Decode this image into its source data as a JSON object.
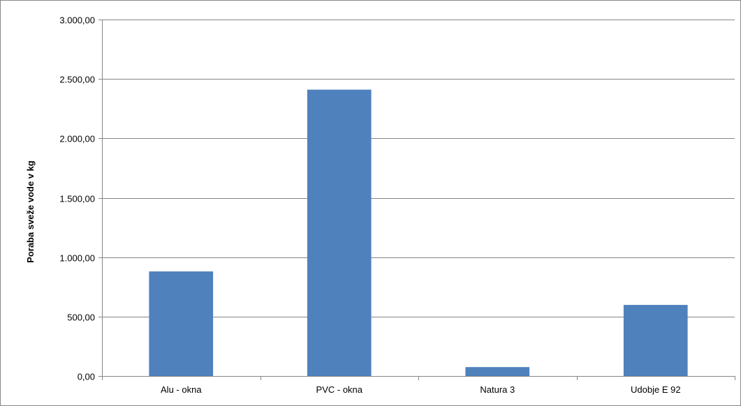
{
  "chart_data": {
    "type": "bar",
    "title": "",
    "xlabel": "",
    "ylabel": "Poraba sveže vode v kg",
    "categories": [
      "Alu - okna",
      "PVC - okna",
      "Natura 3",
      "Udobje E 92"
    ],
    "values": [
      880,
      2410,
      75,
      598
    ],
    "ylim": [
      0,
      3000
    ],
    "yticks": [
      0,
      500,
      1000,
      1500,
      2000,
      2500,
      3000
    ],
    "ytick_labels": [
      "0,00",
      "500,00",
      "1.000,00",
      "1.500,00",
      "2.000,00",
      "2.500,00",
      "3.000,00"
    ],
    "grid": "horizontal",
    "legend": "none",
    "bar_color": "#4F81BD",
    "grid_color": "#868686",
    "axis_color": "#868686"
  }
}
